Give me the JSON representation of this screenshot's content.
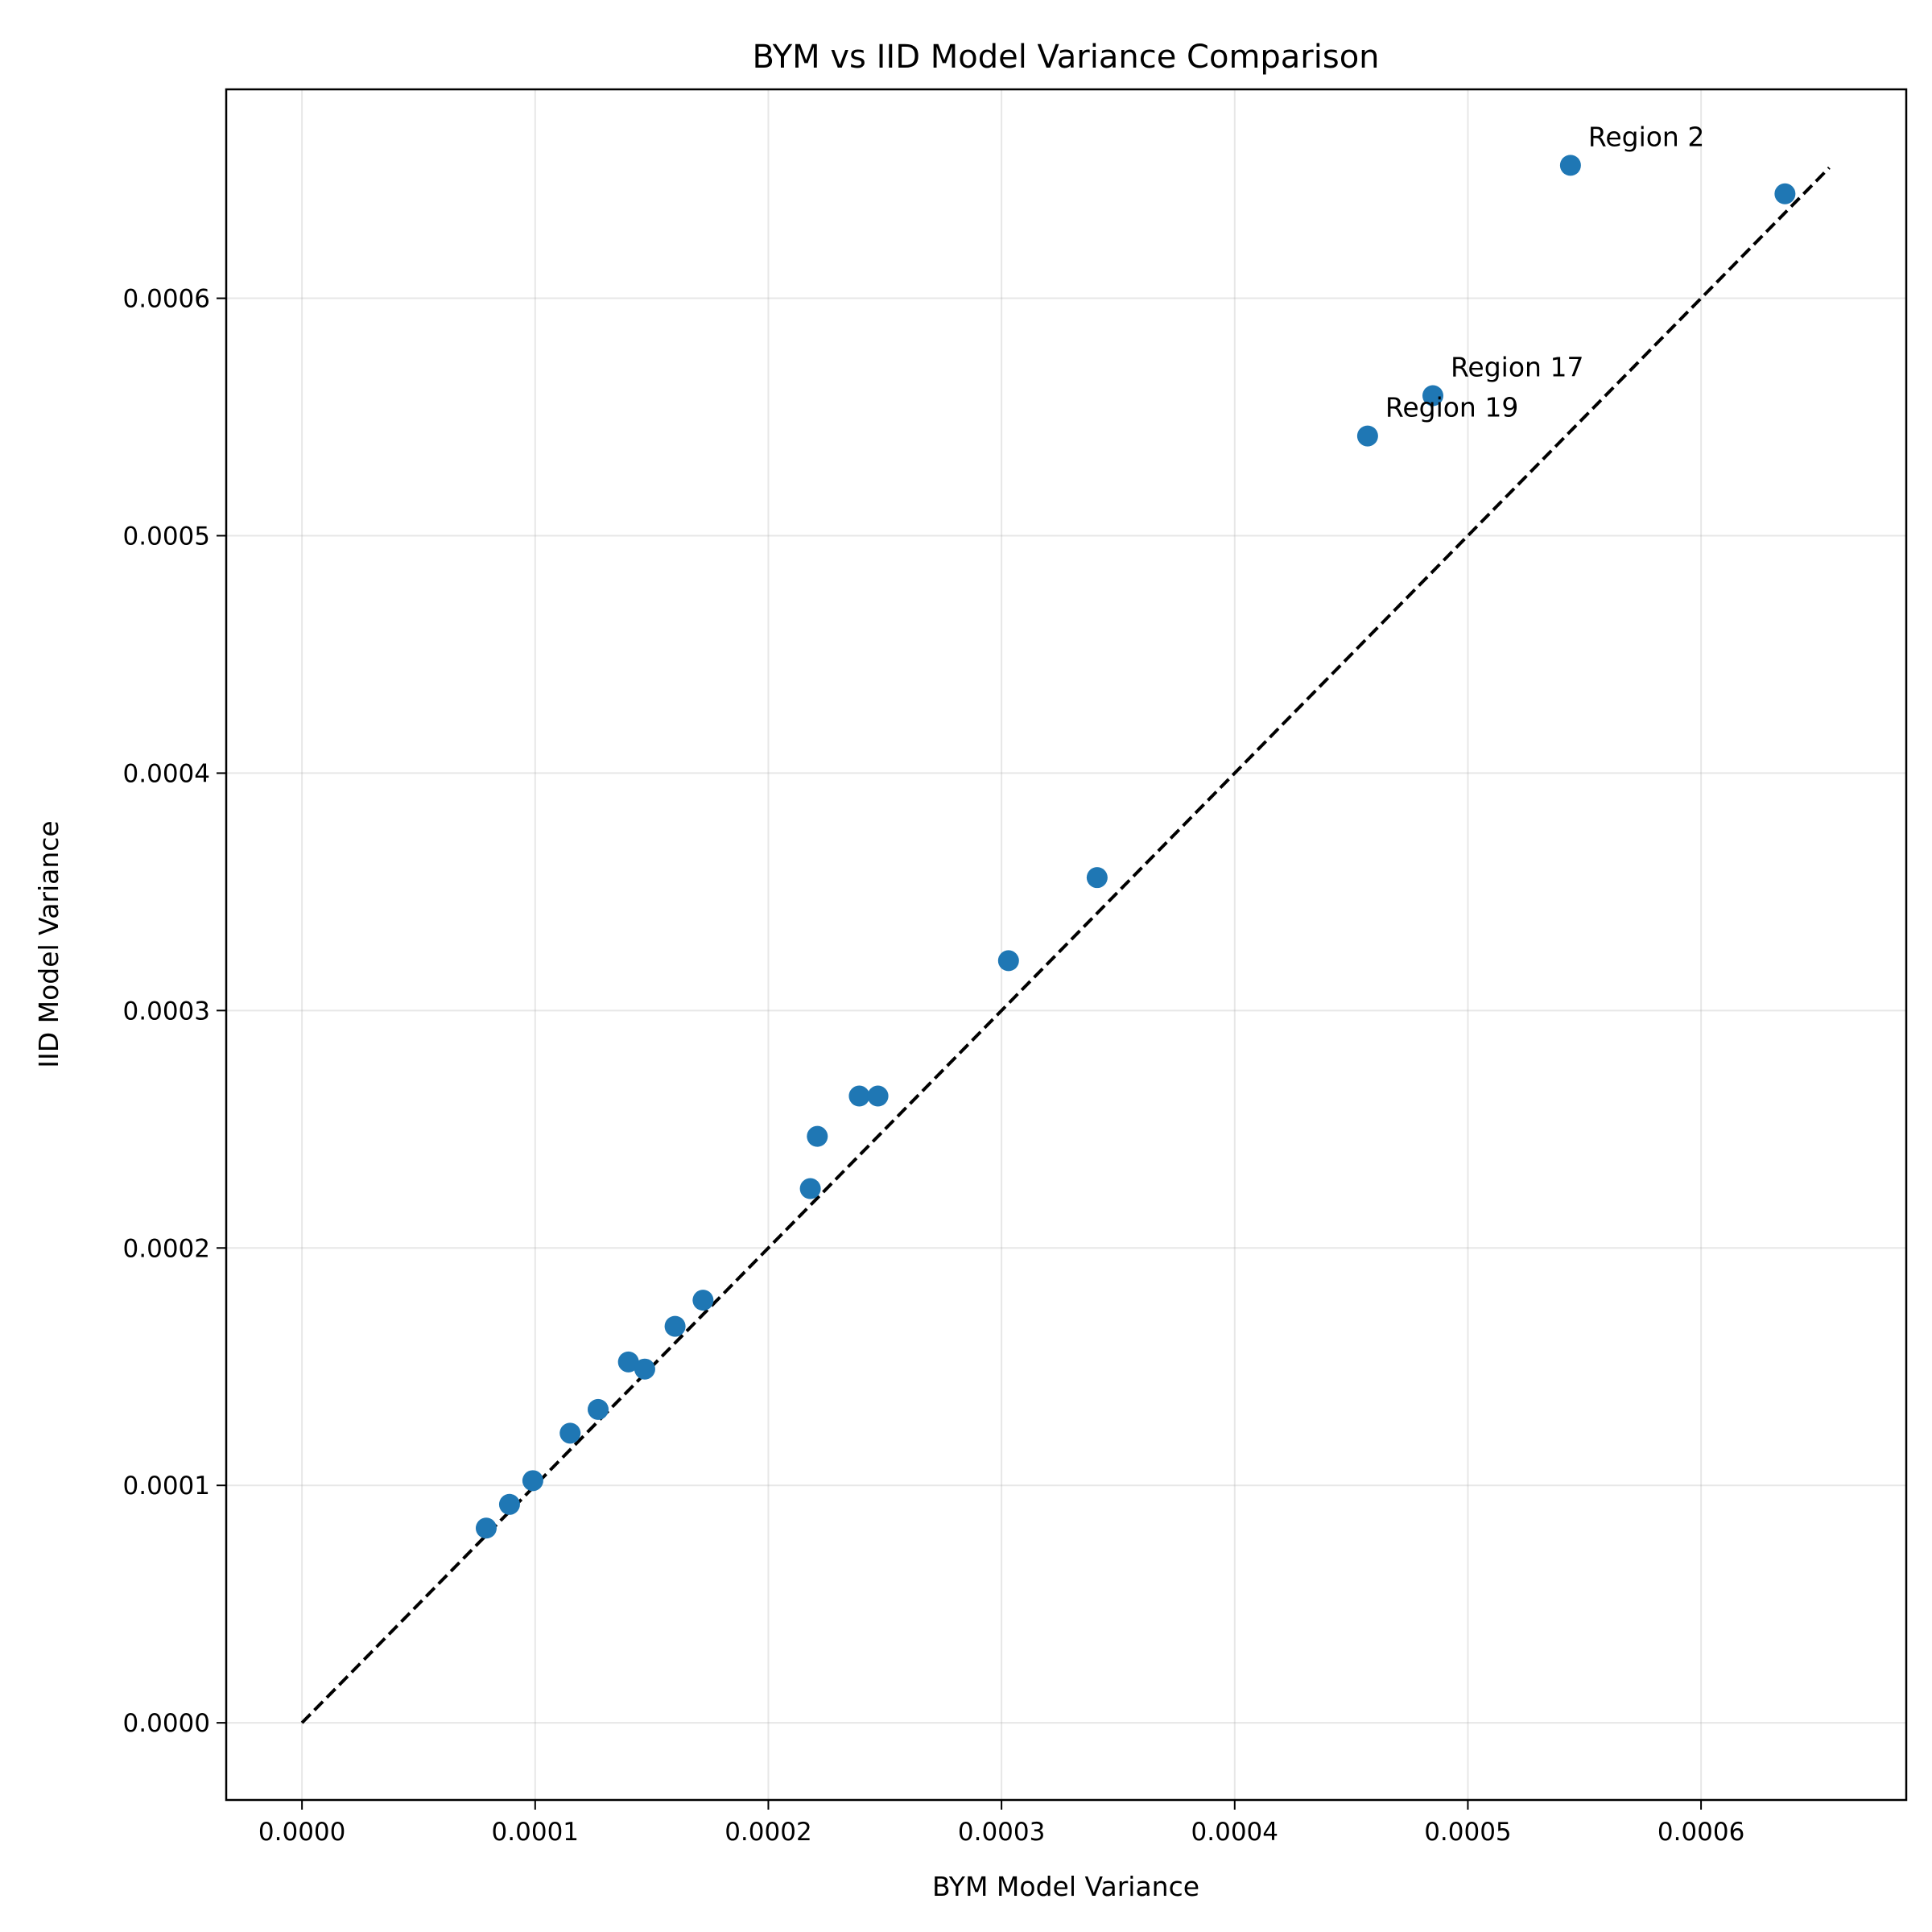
{
  "chart_data": {
    "type": "scatter",
    "title": "BYM vs IID Model Variance Comparison",
    "xlabel": "BYM Model Variance",
    "ylabel": "IID Model Variance",
    "xlim": [
      -3.25e-05,
      0.000688
    ],
    "ylim": [
      -3.25e-05,
      0.000688
    ],
    "xticks": [
      0.0,
      0.0001,
      0.0002,
      0.0003,
      0.0004,
      0.0005,
      0.0006
    ],
    "yticks": [
      0.0,
      0.0001,
      0.0002,
      0.0003,
      0.0004,
      0.0005,
      0.0006
    ],
    "xtick_labels": [
      "0.0000",
      "0.0001",
      "0.0002",
      "0.0003",
      "0.0004",
      "0.0005",
      "0.0006"
    ],
    "ytick_labels": [
      "0.0000",
      "0.0001",
      "0.0002",
      "0.0003",
      "0.0004",
      "0.0005",
      "0.0006"
    ],
    "grid": true,
    "marker_color": "#1f77b4",
    "reference_line": {
      "from": [
        0.0,
        0.0
      ],
      "to": [
        0.000655,
        0.000655
      ],
      "style": "dashed",
      "color": "#000000"
    },
    "points": [
      {
        "x": 7.9e-05,
        "y": 8.2e-05
      },
      {
        "x": 8.9e-05,
        "y": 9.2e-05
      },
      {
        "x": 9.9e-05,
        "y": 0.000102
      },
      {
        "x": 0.000115,
        "y": 0.000122
      },
      {
        "x": 0.000127,
        "y": 0.000132
      },
      {
        "x": 0.00014,
        "y": 0.000152
      },
      {
        "x": 0.000147,
        "y": 0.000149
      },
      {
        "x": 0.00016,
        "y": 0.000167
      },
      {
        "x": 0.000172,
        "y": 0.000178
      },
      {
        "x": 0.000218,
        "y": 0.000225
      },
      {
        "x": 0.000221,
        "y": 0.000247
      },
      {
        "x": 0.000239,
        "y": 0.000264
      },
      {
        "x": 0.000247,
        "y": 0.000264
      },
      {
        "x": 0.000303,
        "y": 0.000321
      },
      {
        "x": 0.000341,
        "y": 0.000356
      },
      {
        "x": 0.000457,
        "y": 0.000542,
        "label": "Region 19"
      },
      {
        "x": 0.000485,
        "y": 0.000559,
        "label": "Region 17"
      },
      {
        "x": 0.000544,
        "y": 0.000656,
        "label": "Region 2"
      },
      {
        "x": 0.000636,
        "y": 0.000644
      }
    ]
  }
}
